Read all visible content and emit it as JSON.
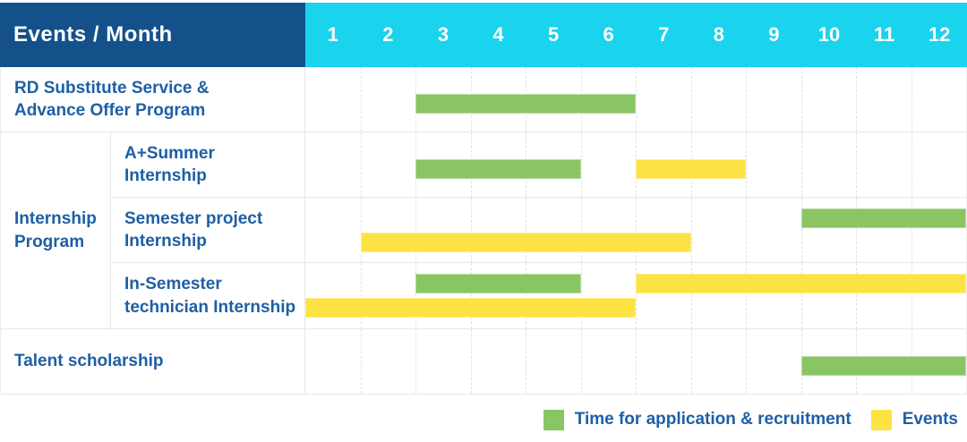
{
  "header": {
    "title": "Events / Month"
  },
  "months": [
    "1",
    "2",
    "3",
    "4",
    "5",
    "6",
    "7",
    "8",
    "9",
    "10",
    "11",
    "12"
  ],
  "legend": {
    "items": [
      {
        "key": "application",
        "label": "Time for application & recruitment",
        "color": "#8ac564"
      },
      {
        "key": "events",
        "label": "Events",
        "color": "#fde243"
      }
    ]
  },
  "colors": {
    "header-bg": "#14518b",
    "months-bg": "#1ad3ec",
    "label-text": "#1e5fa4",
    "bar-green": "#8ac564",
    "bar-yellow": "#fde243",
    "grid-line": "#e2e2e2"
  },
  "chart_data": {
    "type": "gantt",
    "x_unit": "month",
    "x_ticks": [
      1,
      2,
      3,
      4,
      5,
      6,
      7,
      8,
      9,
      10,
      11,
      12
    ],
    "series_legend": {
      "green": "Time for application & recruitment",
      "yellow": "Events"
    },
    "rows": [
      {
        "label": "RD Substitute Service &\nAdvance Offer Program",
        "group": null,
        "bars": [
          {
            "kind": "green",
            "start_month": 3,
            "end_month": 6,
            "line": "single"
          }
        ]
      },
      {
        "label": "A+Summer\nInternship",
        "group": "Internship\nProgram",
        "bars": [
          {
            "kind": "green",
            "start_month": 3,
            "end_month": 5,
            "line": "single"
          },
          {
            "kind": "yellow",
            "start_month": 7,
            "end_month": 8,
            "line": "single"
          }
        ]
      },
      {
        "label": "Semester project\nInternship",
        "group": "Internship\nProgram",
        "bars": [
          {
            "kind": "green",
            "start_month": 10,
            "end_month": 12,
            "line": "top"
          },
          {
            "kind": "yellow",
            "start_month": 2,
            "end_month": 7,
            "line": "bottom"
          }
        ]
      },
      {
        "label": "In-Semester\ntechnician Internship",
        "group": "Internship\nProgram",
        "bars": [
          {
            "kind": "green",
            "start_month": 3,
            "end_month": 5,
            "line": "top"
          },
          {
            "kind": "yellow",
            "start_month": 7,
            "end_month": 12,
            "line": "top"
          },
          {
            "kind": "yellow",
            "start_month": 1,
            "end_month": 6,
            "line": "bottom"
          }
        ]
      },
      {
        "label": "Talent scholarship",
        "group": null,
        "bars": [
          {
            "kind": "green",
            "start_month": 10,
            "end_month": 12,
            "line": "single"
          }
        ]
      }
    ]
  }
}
